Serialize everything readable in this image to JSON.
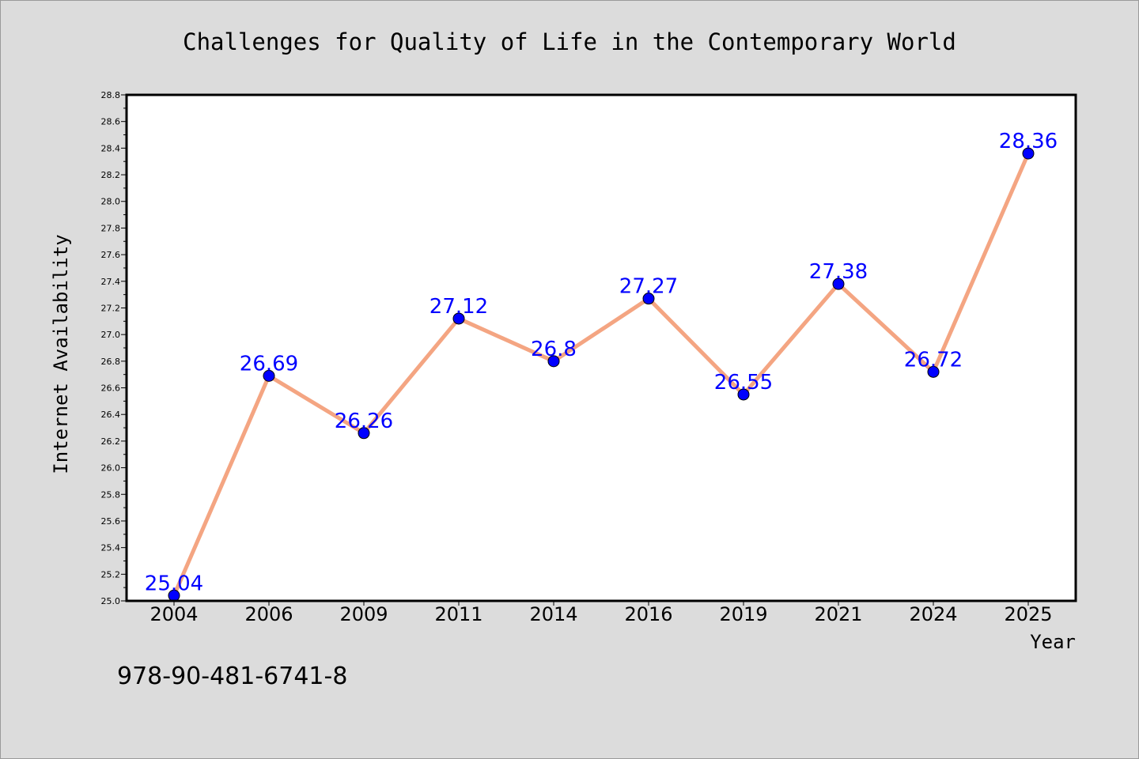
{
  "chart_data": {
    "type": "line",
    "title": "Challenges for Quality of Life in the Contemporary World",
    "xlabel": "Year",
    "ylabel": "Internet Availability",
    "categories": [
      "2004",
      "2006",
      "2009",
      "2011",
      "2014",
      "2016",
      "2019",
      "2021",
      "2024",
      "2025"
    ],
    "series": [
      {
        "values": [
          25.04,
          26.69,
          26.26,
          27.12,
          26.8,
          27.27,
          26.55,
          27.38,
          26.72,
          28.36
        ],
        "data_labels": [
          "25.04",
          "26.69",
          "26.26",
          "27.12",
          "26.8",
          "27.27",
          "26.55",
          "27.38",
          "26.72",
          "28.36"
        ],
        "line_color": "#f4a582",
        "marker_color": "#0000ff"
      }
    ],
    "ylim": [
      25.0,
      28.8
    ],
    "yticks": [
      "25.0",
      "25.2",
      "25.4",
      "25.6",
      "25.8",
      "26.0",
      "26.2",
      "26.4",
      "26.6",
      "26.8",
      "27.0",
      "27.2",
      "27.4",
      "27.6",
      "27.8",
      "28.0",
      "28.2",
      "28.4",
      "28.6",
      "28.8"
    ],
    "grid": false,
    "legend": "none"
  },
  "footer": {
    "isbn": "978-90-481-6741-8"
  },
  "colors": {
    "background": "#dcdcdc",
    "plot_area": "#ffffff",
    "line": "#f4a582",
    "marker": "#0000ff",
    "data_label": "#0000ff"
  }
}
